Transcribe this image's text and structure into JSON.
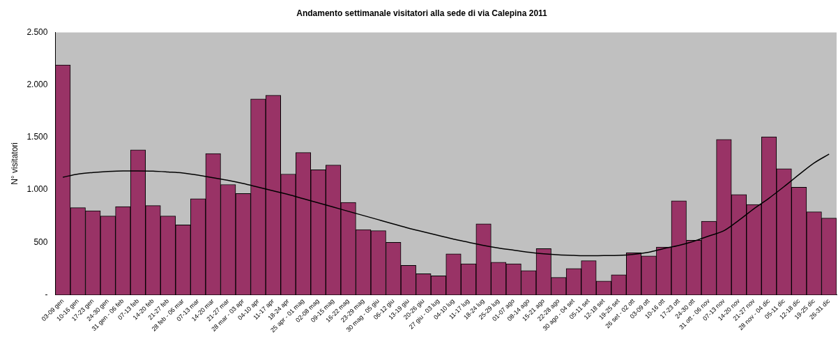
{
  "chart_data": {
    "type": "bar",
    "title": "Andamento settimanale visitatori alla sede di via Calepina 2011",
    "ylabel": "N° visitatori",
    "categories": [
      "03-09 gen",
      "10-16 gen",
      "17-23 gen",
      "24-30 gen",
      "31 gen - 06 feb",
      "07-13 feb",
      "14-20 feb",
      "21-27 feb",
      "28 feb - 06 mar",
      "07-13 mar",
      "14-20 mar",
      "21-27 mar",
      "28 mar - 03 apr",
      "04-10 apr",
      "11-17 apr",
      "18-24 apr",
      "25 apr - 01 mag",
      "02-08 mag",
      "09-15 mag",
      "16-22 mag",
      "23-29 mag",
      "30 mag - 05 giu",
      "06-12 giu",
      "13-19 giu",
      "20-26 giu",
      "27 giu - 03 lug",
      "04-10 lug",
      "11-17 lug",
      "18-24 lug",
      "25-29 lug",
      "01-07 ago",
      "08-14 ago",
      "15-21 ago",
      "22-28 ago",
      "30 ago - 04 set",
      "05-11 set",
      "12-18 set",
      "19-25 set",
      "26 set - 02 ott",
      "03-09 ott",
      "10-16 ott",
      "17-23 ott",
      "24-30 ott",
      "31 ott - 06 nov",
      "07-13 nov",
      "14-20 nov",
      "21-27 nov",
      "28 nov - 04 dic",
      "05-11 dic",
      "12-18 dic",
      "19-25 dic",
      "26-31 dic"
    ],
    "series": [
      {
        "color": "#993366",
        "values": [
          2190,
          830,
          800,
          750,
          840,
          1380,
          850,
          750,
          665,
          915,
          1345,
          1050,
          965,
          1865,
          1900,
          1150,
          1355,
          1190,
          1235,
          880,
          620,
          610,
          500,
          280,
          200,
          180,
          390,
          295,
          675,
          310,
          295,
          230,
          440,
          165,
          250,
          325,
          130,
          190,
          400,
          370,
          455,
          895,
          520,
          700,
          1480,
          955,
          860,
          1505,
          1200,
          1025,
          790,
          730
        ]
      },
      {
        "type": "line",
        "color": "#000000",
        "values": [
          1120,
          1150,
          1165,
          1175,
          1180,
          1180,
          1178,
          1170,
          1160,
          1140,
          1115,
          1090,
          1060,
          1025,
          990,
          955,
          915,
          875,
          835,
          795,
          755,
          715,
          675,
          635,
          600,
          565,
          530,
          500,
          470,
          445,
          425,
          405,
          390,
          380,
          375,
          372,
          373,
          375,
          385,
          405,
          440,
          470,
          510,
          560,
          610,
          710,
          820,
          920,
          1030,
          1145,
          1255,
          1340
        ]
      }
    ],
    "ylim": [
      0,
      2500
    ],
    "yticks": [
      {
        "value": 0,
        "label": "-"
      },
      500,
      {
        "value": 1000,
        "label": "1.000"
      },
      {
        "value": 1500,
        "label": "1.500"
      },
      {
        "value": 2000,
        "label": "2.000"
      },
      {
        "value": 2500,
        "label": "2.500"
      }
    ],
    "grid": false,
    "legend": false,
    "marker": "none"
  }
}
